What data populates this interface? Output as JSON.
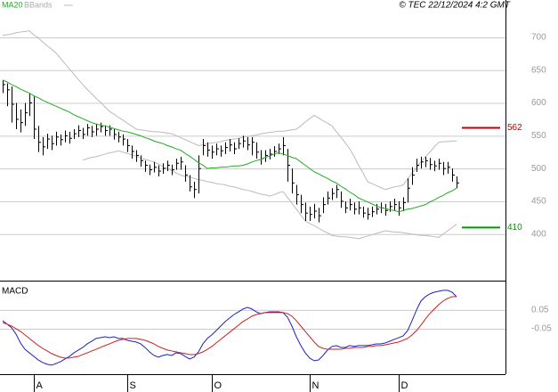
{
  "chart_data": [
    {
      "type": "ohlc",
      "credit": "© TEC 22/12/2024 4:2 GMT",
      "categories": [
        null,
        null,
        null,
        null,
        null,
        null,
        null,
        "A",
        null,
        null,
        null,
        null,
        null,
        null,
        null,
        null,
        null,
        null,
        null,
        null,
        null,
        null,
        null,
        null,
        null,
        null,
        null,
        null,
        "S",
        null,
        null,
        null,
        null,
        null,
        null,
        null,
        null,
        null,
        null,
        null,
        null,
        null,
        null,
        null,
        null,
        null,
        null,
        "O",
        null,
        null,
        null,
        null,
        null,
        null,
        null,
        null,
        null,
        null,
        null,
        null,
        null,
        null,
        null,
        null,
        null,
        null,
        null,
        null,
        null,
        "N",
        null,
        null,
        null,
        null,
        null,
        null,
        null,
        null,
        null,
        null,
        null,
        null,
        null,
        null,
        null,
        null,
        null,
        null,
        null,
        "D",
        null,
        null,
        null,
        null,
        null,
        null,
        null,
        null,
        null,
        null,
        null,
        null,
        null
      ],
      "high": [
        635,
        630,
        625,
        600,
        590,
        600,
        615,
        610,
        565,
        548,
        553,
        550,
        556,
        552,
        558,
        556,
        560,
        566,
        562,
        568,
        565,
        568,
        570,
        566,
        566,
        560,
        556,
        552,
        545,
        535,
        528,
        520,
        512,
        506,
        510,
        505,
        508,
        512,
        506,
        515,
        518,
        505,
        490,
        480,
        520,
        545,
        540,
        535,
        538,
        535,
        540,
        545,
        540,
        546,
        550,
        548,
        548,
        540,
        528,
        528,
        530,
        534,
        538,
        548,
        530,
        500,
        475,
        460,
        448,
        442,
        446,
        440,
        456,
        465,
        470,
        475,
        465,
        450,
        454,
        448,
        450,
        442,
        440,
        442,
        446,
        448,
        446,
        450,
        454,
        450,
        456,
        485,
        502,
        515,
        518,
        518,
        516,
        512,
        515,
        510,
        510,
        500,
        488
      ],
      "low": [
        615,
        595,
        570,
        560,
        555,
        565,
        580,
        545,
        525,
        520,
        530,
        528,
        535,
        535,
        540,
        538,
        545,
        548,
        545,
        550,
        548,
        550,
        555,
        550,
        550,
        544,
        540,
        535,
        525,
        515,
        510,
        503,
        495,
        490,
        494,
        488,
        492,
        496,
        490,
        498,
        498,
        480,
        465,
        455,
        462,
        520,
        518,
        515,
        520,
        518,
        522,
        526,
        522,
        530,
        532,
        528,
        520,
        515,
        506,
        510,
        514,
        518,
        522,
        520,
        480,
        462,
        445,
        432,
        420,
        420,
        424,
        418,
        432,
        445,
        452,
        455,
        440,
        432,
        436,
        430,
        430,
        425,
        422,
        426,
        430,
        432,
        428,
        434,
        436,
        428,
        435,
        448,
        475,
        495,
        500,
        502,
        498,
        496,
        498,
        490,
        492,
        480,
        470
      ],
      "close": [
        628,
        620,
        598,
        575,
        570,
        585,
        600,
        560,
        540,
        533,
        545,
        538,
        548,
        544,
        550,
        546,
        553,
        558,
        552,
        562,
        556,
        560,
        564,
        558,
        560,
        552,
        548,
        545,
        535,
        526,
        520,
        512,
        505,
        498,
        502,
        496,
        500,
        505,
        498,
        508,
        510,
        490,
        472,
        468,
        500,
        535,
        528,
        525,
        530,
        527,
        532,
        536,
        530,
        538,
        542,
        536,
        540,
        525,
        515,
        520,
        522,
        526,
        530,
        535,
        505,
        478,
        460,
        445,
        432,
        430,
        435,
        428,
        445,
        455,
        462,
        468,
        450,
        440,
        445,
        438,
        440,
        432,
        430,
        434,
        438,
        440,
        436,
        442,
        445,
        440,
        448,
        470,
        490,
        505,
        510,
        512,
        506,
        504,
        508,
        500,
        502,
        490,
        478
      ],
      "color": "#000000",
      "series": [
        {
          "name": "MA20",
          "color": "#22aa22",
          "values": [
            635,
            632,
            628,
            625,
            621,
            618,
            615,
            611,
            608,
            604,
            601,
            598,
            595,
            592,
            589,
            586,
            582,
            579,
            576,
            573,
            570,
            568,
            566,
            565,
            563,
            561,
            559,
            557,
            556,
            554,
            552,
            550,
            547,
            545,
            542,
            540,
            538,
            535,
            533,
            530,
            528,
            523,
            519,
            514,
            509,
            505,
            500,
            501,
            501,
            502,
            502,
            503,
            504,
            504,
            505,
            507,
            510,
            512,
            514,
            517,
            519,
            522,
            524,
            522,
            520,
            517,
            515,
            510,
            505,
            500,
            495,
            492,
            488,
            485,
            481,
            478,
            473,
            469,
            464,
            460,
            455,
            452,
            449,
            446,
            443,
            440,
            439,
            437,
            436,
            434,
            436,
            438,
            439,
            441,
            443,
            445,
            449,
            452,
            456,
            459,
            463,
            466,
            470
          ]
        },
        {
          "name": "BBands",
          "color": "#bbbbbb",
          "upper": [
            703,
            704,
            705,
            707,
            708,
            709,
            710,
            704,
            699,
            693,
            687,
            682,
            676,
            668,
            660,
            652,
            644,
            636,
            628,
            621,
            614,
            607,
            601,
            594,
            587,
            583,
            578,
            574,
            569,
            565,
            560,
            559,
            558,
            557,
            556,
            556,
            555,
            554,
            553,
            550,
            547,
            544,
            541,
            538,
            535,
            536,
            538,
            539,
            540,
            541,
            543,
            544,
            545,
            546,
            548,
            549,
            550,
            551,
            553,
            554,
            555,
            556,
            557,
            557,
            558,
            559,
            560,
            565,
            571,
            576,
            581,
            577,
            573,
            569,
            565,
            556,
            548,
            539,
            530,
            518,
            505,
            493,
            480,
            477,
            474,
            471,
            468,
            470,
            472,
            473,
            475,
            484,
            493,
            501,
            510,
            518,
            525,
            533,
            540,
            541,
            541,
            542,
            542
          ],
          "lower": [
            null,
            null,
            null,
            null,
            null,
            null,
            null,
            null,
            null,
            null,
            null,
            null,
            null,
            null,
            null,
            null,
            null,
            null,
            513,
            515,
            517,
            518,
            520,
            522,
            524,
            525,
            527,
            525,
            523,
            521,
            519,
            516,
            514,
            512,
            510,
            507,
            503,
            500,
            497,
            493,
            490,
            488,
            487,
            485,
            483,
            482,
            480,
            479,
            477,
            476,
            475,
            473,
            472,
            470,
            468,
            467,
            465,
            463,
            461,
            460,
            458,
            460,
            463,
            465,
            456,
            447,
            438,
            429,
            420,
            416,
            413,
            409,
            405,
            402,
            398,
            397,
            396,
            396,
            395,
            394,
            393,
            395,
            397,
            399,
            401,
            403,
            405,
            404,
            403,
            403,
            402,
            401,
            400,
            399,
            398,
            398,
            397,
            396,
            395,
            400,
            405,
            410,
            415
          ]
        }
      ],
      "levels": [
        {
          "value": 562,
          "color": "#c00000"
        },
        {
          "value": 410,
          "color": "#009900"
        }
      ],
      "ylim": [
        329,
        757
      ],
      "yticks": [
        400,
        450,
        500,
        550,
        600,
        650,
        700
      ],
      "grid": true
    },
    {
      "type": "line",
      "title": "MACD",
      "series": [
        {
          "color": "#2020c0",
          "values": [
            -0.007,
            -0.026,
            -0.045,
            -0.079,
            -0.126,
            -0.16,
            -0.179,
            -0.198,
            -0.217,
            -0.231,
            -0.24,
            -0.245,
            -0.236,
            -0.226,
            -0.212,
            -0.198,
            -0.179,
            -0.164,
            -0.15,
            -0.131,
            -0.117,
            -0.102,
            -0.098,
            -0.093,
            -0.098,
            -0.093,
            -0.102,
            -0.102,
            -0.112,
            -0.117,
            -0.121,
            -0.131,
            -0.15,
            -0.174,
            -0.193,
            -0.202,
            -0.193,
            -0.188,
            -0.193,
            -0.179,
            -0.183,
            -0.198,
            -0.212,
            -0.202,
            -0.174,
            -0.131,
            -0.102,
            -0.083,
            -0.06,
            -0.036,
            -0.012,
            0.007,
            0.026,
            0.04,
            0.055,
            0.064,
            0.055,
            0.04,
            0.031,
            0.036,
            0.04,
            0.04,
            0.04,
            0.036,
            0.012,
            -0.036,
            -0.093,
            -0.14,
            -0.179,
            -0.207,
            -0.221,
            -0.217,
            -0.193,
            -0.164,
            -0.145,
            -0.14,
            -0.15,
            -0.15,
            -0.14,
            -0.145,
            -0.14,
            -0.14,
            -0.14,
            -0.136,
            -0.131,
            -0.131,
            -0.126,
            -0.117,
            -0.107,
            -0.098,
            -0.088,
            -0.06,
            -0.007,
            0.05,
            0.098,
            0.121,
            0.136,
            0.145,
            0.15,
            0.155,
            0.155,
            0.145,
            0.121
          ]
        },
        {
          "color": "#cc2020",
          "values": [
            -0.017,
            -0.026,
            -0.036,
            -0.05,
            -0.064,
            -0.083,
            -0.102,
            -0.121,
            -0.14,
            -0.155,
            -0.169,
            -0.183,
            -0.193,
            -0.202,
            -0.207,
            -0.207,
            -0.202,
            -0.198,
            -0.188,
            -0.179,
            -0.169,
            -0.16,
            -0.15,
            -0.14,
            -0.131,
            -0.121,
            -0.112,
            -0.107,
            -0.102,
            -0.102,
            -0.102,
            -0.107,
            -0.112,
            -0.121,
            -0.131,
            -0.145,
            -0.155,
            -0.164,
            -0.169,
            -0.174,
            -0.179,
            -0.183,
            -0.188,
            -0.188,
            -0.183,
            -0.174,
            -0.16,
            -0.145,
            -0.126,
            -0.107,
            -0.088,
            -0.069,
            -0.05,
            -0.031,
            -0.012,
            0.002,
            0.017,
            0.026,
            0.031,
            0.036,
            0.036,
            0.036,
            0.036,
            0.036,
            0.031,
            0.017,
            -0.007,
            -0.036,
            -0.064,
            -0.093,
            -0.121,
            -0.145,
            -0.155,
            -0.16,
            -0.16,
            -0.16,
            -0.16,
            -0.155,
            -0.155,
            -0.15,
            -0.15,
            -0.15,
            -0.145,
            -0.145,
            -0.14,
            -0.14,
            -0.136,
            -0.131,
            -0.126,
            -0.121,
            -0.112,
            -0.102,
            -0.083,
            -0.06,
            -0.031,
            0.002,
            0.031,
            0.055,
            0.079,
            0.098,
            0.112,
            0.121,
            0.121
          ]
        }
      ],
      "ylim": [
        -0.293,
        0.202
      ],
      "yticks": [
        0.05,
        -0.05
      ]
    }
  ]
}
